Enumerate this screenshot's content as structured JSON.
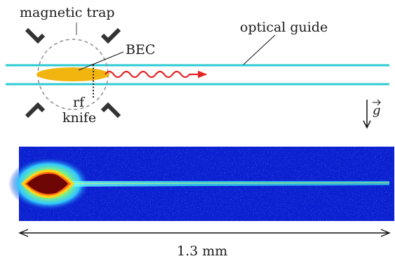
{
  "labels": {
    "magnetic_trap": "magnetic trap",
    "optical_guide": "optical guide",
    "bec": "BEC",
    "rf": "rf",
    "knife": "knife",
    "gravity": "g",
    "scale": "1.3 mm"
  },
  "colors": {
    "guide_beam": "#2ecbd3",
    "bec_cloud": "#f2b40f",
    "outcoupled_wave": "#e22424",
    "image_background": "#0a1fd0",
    "image_core": "#6e0606",
    "coil": "#333333",
    "trap_outline": "#8f8f8f"
  },
  "icons": [
    "coil-icon",
    "wave-arrow-icon",
    "gravity-arrow-icon",
    "scale-double-arrow-icon"
  ]
}
